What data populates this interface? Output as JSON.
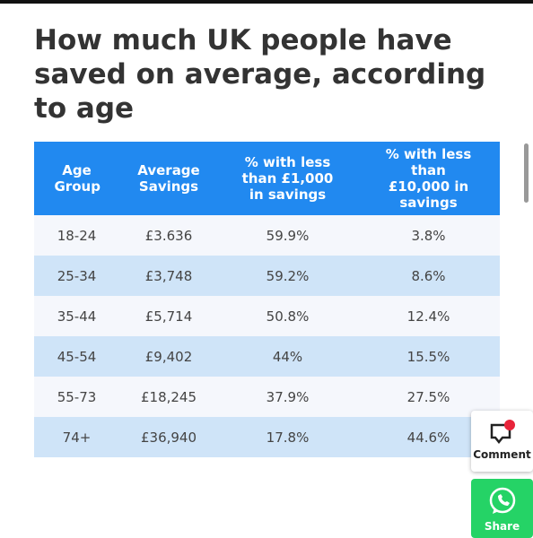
{
  "header": {
    "title": "How much UK people have saved on average, according to age"
  },
  "table": {
    "columns": [
      "Age Group",
      "Average Savings",
      "% with less than £1,000 in savings",
      "% with less than £10,000 in savings"
    ],
    "rows": [
      [
        "18-24",
        "£3.636",
        "59.9%",
        "3.8%"
      ],
      [
        "25-34",
        "£3,748",
        "59.2%",
        "8.6%"
      ],
      [
        "35-44",
        "£5,714",
        "50.8%",
        "12.4%"
      ],
      [
        "45-54",
        "£9,402",
        "44%",
        "15.5%"
      ],
      [
        "55-73",
        "£18,245",
        "37.9%",
        "27.5%"
      ],
      [
        "74+",
        "£36,940",
        "17.8%",
        "44.6%"
      ]
    ]
  },
  "buttons": {
    "comment": "Comment",
    "share": "Share"
  }
}
